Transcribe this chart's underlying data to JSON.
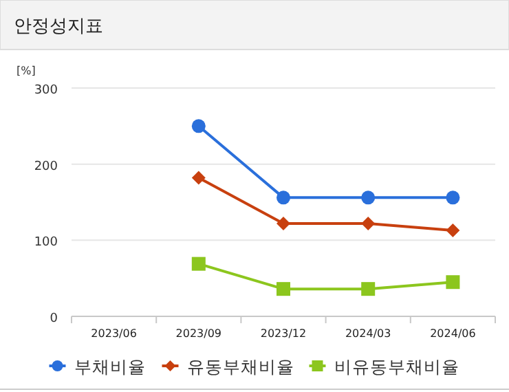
{
  "chart_data": {
    "type": "line",
    "title": "안정성지표",
    "ylabel": "[%]",
    "categories": [
      "2023/06",
      "2023/09",
      "2023/12",
      "2024/03",
      "2024/06"
    ],
    "series": [
      {
        "name": "부채비율",
        "color": "#2a6fdb",
        "marker": "circle",
        "values": [
          null,
          250,
          156,
          156,
          156
        ]
      },
      {
        "name": "유동부채비율",
        "color": "#c8400f",
        "marker": "diamond",
        "values": [
          null,
          182,
          122,
          122,
          113
        ]
      },
      {
        "name": "비유동부채비율",
        "color": "#8cc61e",
        "marker": "square",
        "values": [
          null,
          69,
          36,
          36,
          45
        ]
      }
    ],
    "ylim": [
      0,
      300
    ],
    "yticks": [
      0,
      100,
      200,
      300
    ],
    "grid": "y",
    "legend": "bottom",
    "line_style": "solid"
  }
}
